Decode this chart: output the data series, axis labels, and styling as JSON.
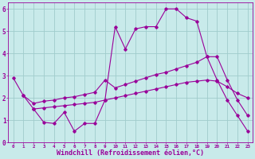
{
  "bg_color": "#c8eaea",
  "line_color": "#990099",
  "grid_color": "#a0cccc",
  "xlabel": "Windchill (Refroidissement éolien,°C)",
  "xlabel_fontsize": 6.0,
  "xtick_fontsize": 4.2,
  "ytick_fontsize": 5.5,
  "xlim": [
    -0.5,
    23.5
  ],
  "ylim": [
    0,
    6.3
  ],
  "yticks": [
    0,
    1,
    2,
    3,
    4,
    5,
    6
  ],
  "xticks": [
    0,
    1,
    2,
    3,
    4,
    5,
    6,
    7,
    8,
    9,
    10,
    11,
    12,
    13,
    14,
    15,
    16,
    17,
    18,
    19,
    20,
    21,
    22,
    23
  ],
  "series1_x": [
    0,
    1,
    2,
    3,
    4,
    5,
    6,
    7,
    8,
    9,
    10,
    11,
    12,
    13,
    14,
    15,
    16,
    17,
    18,
    19,
    20,
    21,
    22,
    23
  ],
  "series1_y": [
    2.9,
    2.1,
    1.5,
    0.9,
    0.85,
    1.35,
    0.5,
    0.85,
    0.85,
    1.9,
    5.2,
    4.2,
    5.1,
    5.2,
    5.2,
    6.0,
    6.0,
    5.6,
    5.45,
    3.85,
    2.8,
    1.9,
    1.2,
    0.5
  ],
  "series2_x": [
    1,
    2,
    3,
    4,
    5,
    6,
    7,
    8,
    9,
    10,
    11,
    12,
    13,
    14,
    15,
    16,
    17,
    18,
    19,
    20,
    21,
    22,
    23
  ],
  "series2_y": [
    2.1,
    1.75,
    1.85,
    1.9,
    2.0,
    2.05,
    2.15,
    2.25,
    2.8,
    2.45,
    2.6,
    2.75,
    2.9,
    3.05,
    3.15,
    3.3,
    3.45,
    3.6,
    3.85,
    3.85,
    2.8,
    1.9,
    1.2
  ],
  "series3_x": [
    2,
    3,
    4,
    5,
    6,
    7,
    8,
    9,
    10,
    11,
    12,
    13,
    14,
    15,
    16,
    17,
    18,
    19,
    20,
    21,
    22,
    23
  ],
  "series3_y": [
    1.5,
    1.55,
    1.6,
    1.65,
    1.7,
    1.75,
    1.8,
    1.9,
    2.0,
    2.1,
    2.2,
    2.3,
    2.4,
    2.5,
    2.6,
    2.7,
    2.75,
    2.8,
    2.75,
    2.5,
    2.2,
    2.0
  ]
}
